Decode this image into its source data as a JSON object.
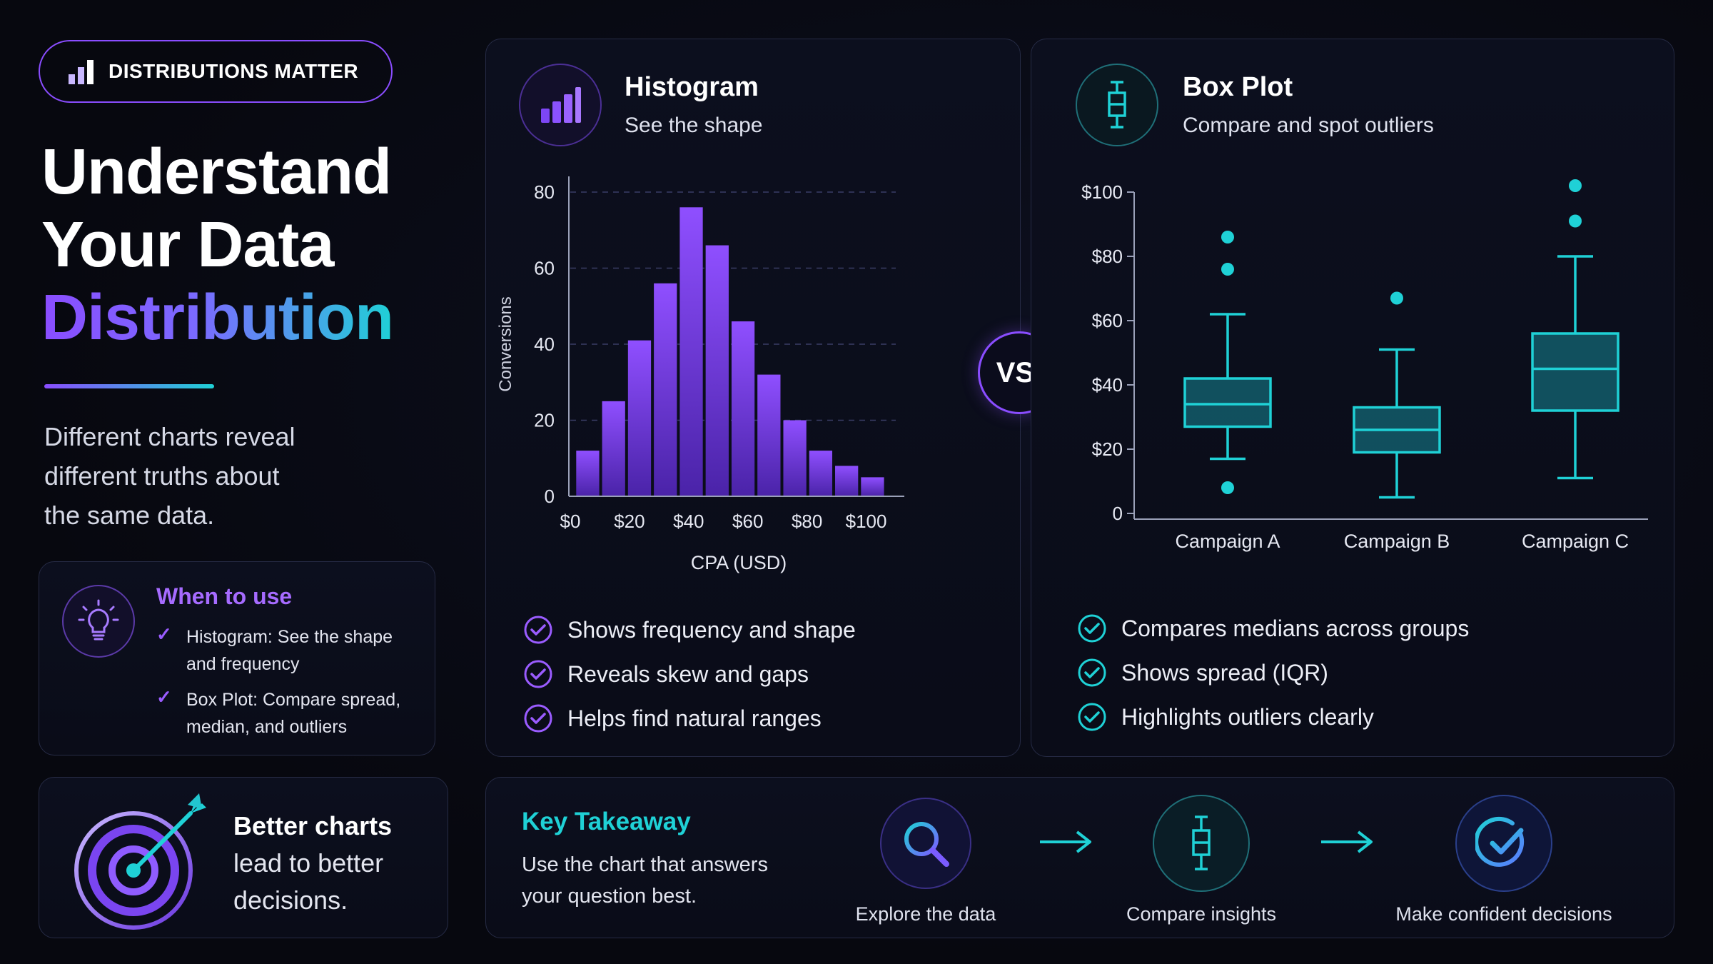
{
  "badge": {
    "label": "DISTRIBUTIONS MATTER",
    "icon": "bar-chart-icon"
  },
  "hero": {
    "line1": "Understand",
    "line2": "Your Data",
    "line3": "Distribution",
    "intro_lines": [
      "Different charts reveal",
      "different truths about",
      "the same data."
    ]
  },
  "when_to_use": {
    "title": "When to use",
    "icon": "lightbulb-icon",
    "items": [
      {
        "line1": "Histogram: See the shape",
        "line2": "and frequency"
      },
      {
        "line1": "Box Plot: Compare spread,",
        "line2": "median, and outliers"
      }
    ]
  },
  "better_charts": {
    "icon": "target-icon",
    "line1": "Better charts",
    "line2": "lead to better",
    "line3": "decisions."
  },
  "histogram_panel": {
    "title": "Histogram",
    "subtitle": "See the shape",
    "icon": "bar-chart-icon",
    "bullets": [
      "Shows frequency and shape",
      "Reveals skew and gaps",
      "Helps find natural ranges"
    ]
  },
  "boxplot_panel": {
    "title": "Box Plot",
    "subtitle": "Compare and spot outliers",
    "icon": "box-plot-icon",
    "bullets": [
      "Compares medians across groups",
      "Shows spread (IQR)",
      "Highlights outliers clearly"
    ]
  },
  "vs_label": "VS.",
  "takeaway": {
    "title": "Key Takeaway",
    "line1": "Use the chart that answers",
    "line2": "your question best.",
    "steps": [
      {
        "label": "Explore the data",
        "icon": "search-icon"
      },
      {
        "label": "Compare insights",
        "icon": "box-plot-icon"
      },
      {
        "label": "Make confident decisions",
        "icon": "check-circle-icon"
      }
    ]
  },
  "colors": {
    "purple": "#8a4dff",
    "teal": "#1fd1d6",
    "bar_top": "#8f4fff",
    "bar_bottom": "#4a23a8"
  },
  "chart_data": [
    {
      "type": "bar",
      "title": "",
      "xlabel": "CPA (USD)",
      "ylabel": "Conversions",
      "ylim": [
        0,
        80
      ],
      "yticks": [
        0,
        20,
        40,
        60,
        80
      ],
      "xlim": [
        0,
        110
      ],
      "xticks": [
        "$0",
        "$20",
        "$40",
        "$60",
        "$80",
        "$100"
      ],
      "bin_width": 8.75,
      "bin_starts": [
        2,
        10.75,
        19.5,
        28.25,
        37,
        45.75,
        54.5,
        63.25,
        72,
        80.75,
        89.5,
        98.25
      ],
      "values": [
        12,
        25,
        41,
        56,
        76,
        66,
        46,
        32,
        20,
        12,
        8,
        5
      ],
      "grid": true
    },
    {
      "type": "box",
      "title": "",
      "xlabel": "",
      "ylabel": "",
      "ylim": [
        0,
        100
      ],
      "yticks": [
        "0",
        "$20",
        "$40",
        "$60",
        "$80",
        "$100"
      ],
      "categories": [
        "Campaign A",
        "Campaign B",
        "Campaign C"
      ],
      "series": [
        {
          "category": "Campaign A",
          "whisker_low": 17,
          "q1": 27,
          "median": 34,
          "q3": 42,
          "whisker_high": 62,
          "outliers": [
            8,
            76,
            86
          ]
        },
        {
          "category": "Campaign B",
          "whisker_low": 5,
          "q1": 19,
          "median": 26,
          "q3": 33,
          "whisker_high": 51,
          "outliers": [
            67
          ]
        },
        {
          "category": "Campaign C",
          "whisker_low": 11,
          "q1": 32,
          "median": 45,
          "q3": 56,
          "whisker_high": 80,
          "outliers": [
            91,
            102
          ]
        }
      ]
    }
  ]
}
